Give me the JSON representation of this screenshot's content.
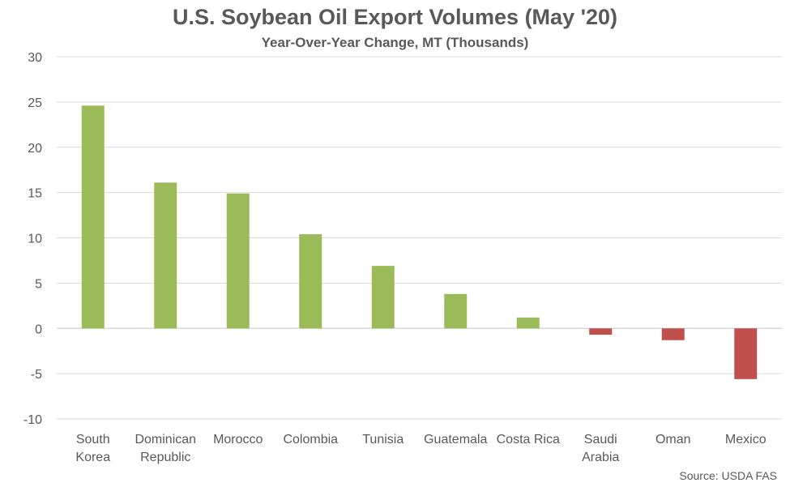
{
  "chart_data": {
    "type": "bar",
    "title": "U.S. Soybean Oil Export Volumes (May '20)",
    "subtitle": "Year-Over-Year Change, MT (Thousands)",
    "source": "Source: USDA FAS",
    "categories": [
      [
        "South",
        "Korea"
      ],
      [
        "Dominican",
        "Republic"
      ],
      [
        "Morocco"
      ],
      [
        "Colombia"
      ],
      [
        "Tunisia"
      ],
      [
        "Guatemala"
      ],
      [
        "Costa Rica"
      ],
      [
        "Saudi",
        "Arabia"
      ],
      [
        "Oman"
      ],
      [
        "Mexico"
      ]
    ],
    "values": [
      24.6,
      16.1,
      14.9,
      10.4,
      6.9,
      3.8,
      1.2,
      -0.7,
      -1.3,
      -5.6
    ],
    "ylim": [
      -10,
      30
    ],
    "yticks": [
      30,
      25,
      20,
      15,
      10,
      5,
      0,
      -5,
      -10
    ],
    "grid": true,
    "colors": {
      "positive": "#9BBB59",
      "negative": "#C0504D",
      "grid": "#D9D9D9",
      "text": "#595959"
    }
  }
}
